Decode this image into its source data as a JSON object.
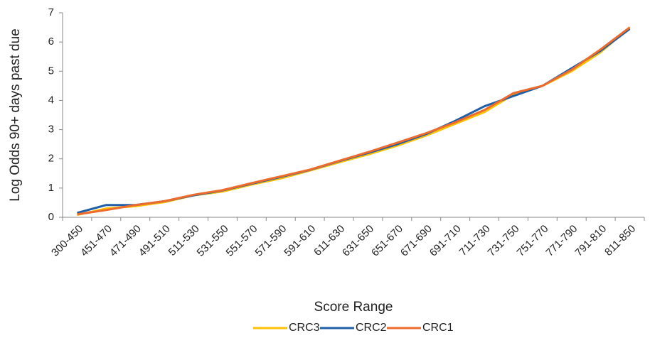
{
  "chart_data": {
    "type": "line",
    "x_label": "Score Range",
    "y_label": "Log Odds 90+ days past due",
    "categories": [
      "300-450",
      "451-470",
      "471-490",
      "491-510",
      "511-530",
      "531-550",
      "551-570",
      "571-590",
      "591-610",
      "611-630",
      "631-650",
      "651-670",
      "671-690",
      "691-710",
      "711-730",
      "731-750",
      "751-770",
      "771-790",
      "791-810",
      "811-850"
    ],
    "series": [
      {
        "name": "CRC3",
        "color": "#FFC000",
        "values": [
          0.08,
          0.3,
          0.38,
          0.52,
          0.75,
          0.88,
          1.12,
          1.33,
          1.6,
          1.88,
          2.15,
          2.45,
          2.8,
          3.2,
          3.6,
          4.2,
          4.5,
          5.0,
          5.65,
          6.5
        ]
      },
      {
        "name": "CRC2",
        "color": "#1F5FA8",
        "values": [
          0.15,
          0.42,
          0.42,
          0.55,
          0.75,
          0.92,
          1.15,
          1.38,
          1.62,
          1.92,
          2.2,
          2.5,
          2.85,
          3.3,
          3.8,
          4.15,
          4.5,
          5.1,
          5.7,
          6.45
        ]
      },
      {
        "name": "CRC1",
        "color": "#ED6B2D",
        "values": [
          0.1,
          0.25,
          0.42,
          0.55,
          0.77,
          0.93,
          1.17,
          1.4,
          1.63,
          1.93,
          2.23,
          2.55,
          2.88,
          3.25,
          3.67,
          4.25,
          4.5,
          5.05,
          5.75,
          6.5
        ]
      }
    ],
    "ylim": [
      0,
      7
    ],
    "yticks": [
      0,
      1,
      2,
      3,
      4,
      5,
      6,
      7
    ],
    "legend": "bottom"
  }
}
